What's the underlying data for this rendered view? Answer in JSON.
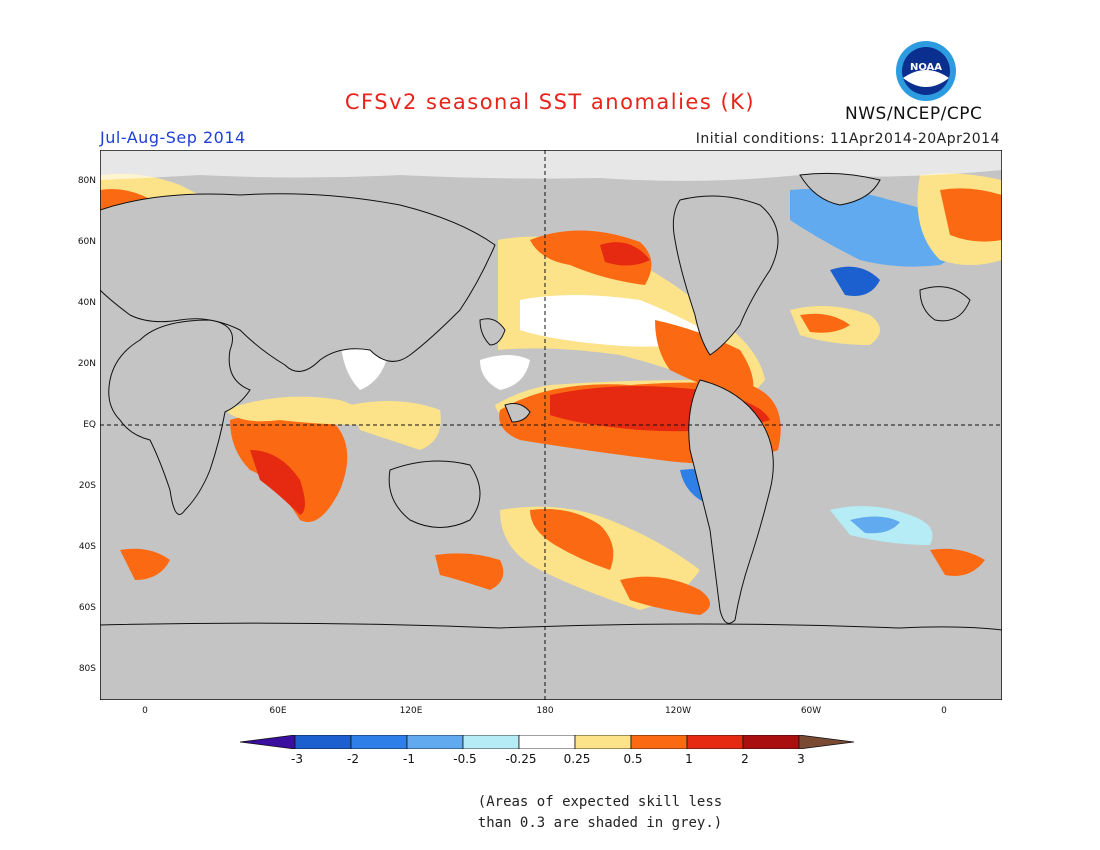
{
  "title": "CFSv2 seasonal SST anomalies (K)",
  "season": "Jul-Aug-Sep 2014",
  "initial_conditions": "Initial conditions: 11Apr2014-20Apr2014",
  "agency": "NWS/NCEP/CPC",
  "logo_text": "NOAA",
  "lat_labels": [
    "80N",
    "60N",
    "40N",
    "20N",
    "EQ",
    "20S",
    "40S",
    "60S",
    "80S"
  ],
  "lon_labels": [
    "0",
    "60E",
    "120E",
    "180",
    "120W",
    "60W",
    "0"
  ],
  "colorbar": {
    "labels": [
      "-3",
      "-2",
      "-1",
      "-0.5",
      "-0.25",
      "0.25",
      "0.5",
      "1",
      "2",
      "3"
    ],
    "colors": [
      "#3a0fa0",
      "#1c5fcf",
      "#2f7fe8",
      "#62aaf0",
      "#b6ecf5",
      "#ffffff",
      "#fce389",
      "#fb6a12",
      "#e62a12",
      "#aa0f0f",
      "#7a4a33"
    ]
  },
  "note_line1": "(Areas of expected skill less",
  "note_line2": "than 0.3 are shaded in grey.)",
  "colors": {
    "land": "#ffffff",
    "ocean_low_skill": "#c4c4c4",
    "title": "#e8231b",
    "season": "#1f3fd6"
  }
}
